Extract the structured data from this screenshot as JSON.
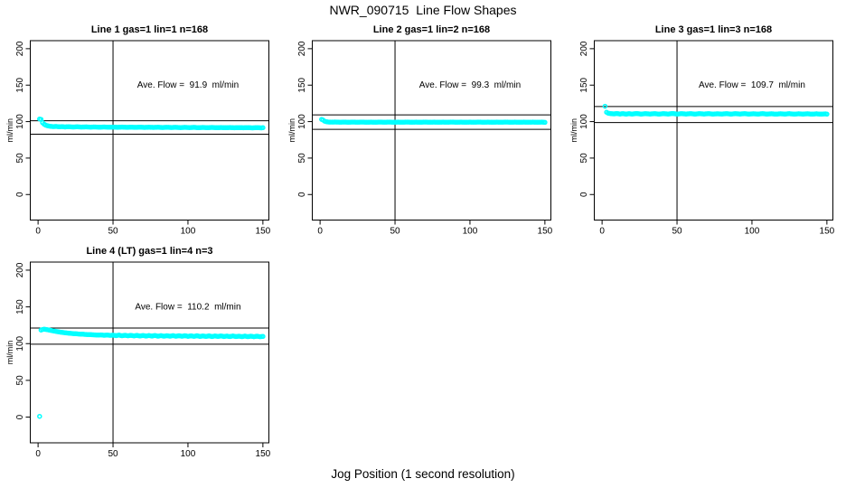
{
  "title": "NWR_090715  Line Flow Shapes",
  "xlabel": "Jog Position (1 second resolution)",
  "colors": {
    "marker": "#00ffff",
    "axis": "#000000",
    "text": "#000000",
    "background": "#ffffff"
  },
  "chart_data": [
    {
      "type": "scatter",
      "title": "Line 1 gas=1 lin=1 n=168",
      "ylabel": "ml/min",
      "annotation": "Ave. Flow =  91.9  ml/min",
      "ave_flow_ml_min": 91.9,
      "n": 168,
      "xticks": [
        0,
        50,
        100,
        150
      ],
      "yticks": [
        0,
        50,
        100,
        150,
        200
      ],
      "xlim": [
        0,
        150
      ],
      "ylim": [
        0,
        200
      ],
      "vline": 50,
      "hlines": [
        101.1,
        82.7
      ],
      "points": [
        [
          1,
          103.5
        ],
        [
          2,
          103
        ],
        [
          3,
          98.5
        ],
        [
          4,
          96.5
        ],
        [
          5,
          95.2
        ],
        [
          6,
          94.5
        ],
        [
          7,
          94
        ],
        [
          8,
          93.6
        ],
        [
          10,
          93.2
        ],
        [
          12,
          93.4
        ],
        [
          14,
          92.9
        ],
        [
          16,
          93.1
        ],
        [
          18,
          92.7
        ],
        [
          20,
          93
        ],
        [
          23,
          92.6
        ],
        [
          26,
          92.9
        ],
        [
          29,
          92.5
        ],
        [
          32,
          92.8
        ],
        [
          35,
          92.4
        ],
        [
          38,
          92.7
        ],
        [
          41,
          92.3
        ],
        [
          44,
          92.6
        ],
        [
          47,
          92.3
        ],
        [
          50,
          92.5
        ],
        [
          53,
          92.2
        ],
        [
          56,
          92.5
        ],
        [
          59,
          92.1
        ],
        [
          62,
          92.4
        ],
        [
          65,
          92.1
        ],
        [
          68,
          92.4
        ],
        [
          71,
          92
        ],
        [
          74,
          92.3
        ],
        [
          77,
          92
        ],
        [
          80,
          92.3
        ],
        [
          83,
          91.9
        ],
        [
          86,
          92.2
        ],
        [
          89,
          91.9
        ],
        [
          92,
          92.2
        ],
        [
          95,
          91.8
        ],
        [
          98,
          92.1
        ],
        [
          101,
          91.8
        ],
        [
          104,
          92.1
        ],
        [
          107,
          91.7
        ],
        [
          110,
          92
        ],
        [
          113,
          91.7
        ],
        [
          116,
          92
        ],
        [
          119,
          91.6
        ],
        [
          122,
          91.9
        ],
        [
          125,
          91.6
        ],
        [
          128,
          91.9
        ],
        [
          131,
          91.5
        ],
        [
          134,
          91.8
        ],
        [
          137,
          91.5
        ],
        [
          140,
          91.8
        ],
        [
          143,
          91.4
        ],
        [
          146,
          91.7
        ],
        [
          149,
          91.4
        ],
        [
          150,
          91.6
        ]
      ]
    },
    {
      "type": "scatter",
      "title": "Line 2 gas=1 lin=2 n=168",
      "ylabel": "ml/min",
      "annotation": "Ave. Flow =  99.3  ml/min",
      "ave_flow_ml_min": 99.3,
      "n": 168,
      "xticks": [
        0,
        50,
        100,
        150
      ],
      "yticks": [
        0,
        50,
        100,
        150,
        200
      ],
      "xlim": [
        0,
        150
      ],
      "ylim": [
        0,
        200
      ],
      "vline": 50,
      "hlines": [
        109.2,
        89.4
      ],
      "points": [
        [
          1,
          103
        ],
        [
          2,
          102.2
        ],
        [
          3,
          100.6
        ],
        [
          4,
          99.9
        ],
        [
          5,
          99.6
        ],
        [
          6,
          99.4
        ],
        [
          8,
          99.3
        ],
        [
          10,
          99.5
        ],
        [
          13,
          99.2
        ],
        [
          16,
          99.4
        ],
        [
          19,
          99.1
        ],
        [
          22,
          99.4
        ],
        [
          25,
          99.2
        ],
        [
          28,
          99.4
        ],
        [
          31,
          99.1
        ],
        [
          34,
          99.3
        ],
        [
          37,
          99.1
        ],
        [
          40,
          99.4
        ],
        [
          43,
          99.2
        ],
        [
          46,
          99.4
        ],
        [
          49,
          99.1
        ],
        [
          52,
          99.3
        ],
        [
          55,
          99.2
        ],
        [
          58,
          99.4
        ],
        [
          61,
          99.1
        ],
        [
          64,
          99.3
        ],
        [
          67,
          99.1
        ],
        [
          70,
          99.4
        ],
        [
          73,
          99.2
        ],
        [
          76,
          99.3
        ],
        [
          79,
          99.1
        ],
        [
          82,
          99.3
        ],
        [
          85,
          99.2
        ],
        [
          88,
          99.4
        ],
        [
          91,
          99.1
        ],
        [
          94,
          99.3
        ],
        [
          97,
          99.1
        ],
        [
          100,
          99.3
        ],
        [
          103,
          99.2
        ],
        [
          106,
          99.4
        ],
        [
          109,
          99.1
        ],
        [
          112,
          99.3
        ],
        [
          115,
          99.1
        ],
        [
          118,
          99.3
        ],
        [
          121,
          99.2
        ],
        [
          124,
          99.4
        ],
        [
          127,
          99.1
        ],
        [
          130,
          99.3
        ],
        [
          133,
          99.1
        ],
        [
          136,
          99.3
        ],
        [
          139,
          99.2
        ],
        [
          142,
          99.3
        ],
        [
          145,
          99.1
        ],
        [
          148,
          99.3
        ],
        [
          150,
          99
        ]
      ]
    },
    {
      "type": "scatter",
      "title": "Line 3 gas=1 lin=3 n=168",
      "ylabel": "ml/min",
      "annotation": "Ave. Flow =  109.7  ml/min",
      "ave_flow_ml_min": 109.7,
      "n": 168,
      "xticks": [
        0,
        50,
        100,
        150
      ],
      "yticks": [
        0,
        50,
        100,
        150,
        200
      ],
      "xlim": [
        0,
        150
      ],
      "ylim": [
        0,
        200
      ],
      "vline": 50,
      "hlines": [
        120.7,
        98.7
      ],
      "points": [
        [
          2,
          121
        ],
        [
          3,
          112.8
        ],
        [
          4,
          111.6
        ],
        [
          5,
          111.2
        ],
        [
          6,
          110.9
        ],
        [
          8,
          110.6
        ],
        [
          10,
          111.1
        ],
        [
          12,
          110.4
        ],
        [
          14,
          111
        ],
        [
          16,
          110.3
        ],
        [
          18,
          110.9
        ],
        [
          20,
          110.4
        ],
        [
          23,
          111.1
        ],
        [
          26,
          110.3
        ],
        [
          29,
          110.9
        ],
        [
          32,
          110.4
        ],
        [
          35,
          111
        ],
        [
          38,
          110.3
        ],
        [
          41,
          110.9
        ],
        [
          44,
          110.4
        ],
        [
          47,
          111.1
        ],
        [
          50,
          110.3
        ],
        [
          53,
          110.9
        ],
        [
          56,
          110.4
        ],
        [
          59,
          111
        ],
        [
          62,
          110.3
        ],
        [
          65,
          110.9
        ],
        [
          68,
          110.4
        ],
        [
          71,
          111
        ],
        [
          74,
          110.3
        ],
        [
          77,
          110.8
        ],
        [
          80,
          110.4
        ],
        [
          83,
          111
        ],
        [
          86,
          110.3
        ],
        [
          89,
          110.9
        ],
        [
          92,
          110.4
        ],
        [
          95,
          111
        ],
        [
          98,
          110.3
        ],
        [
          101,
          110.8
        ],
        [
          104,
          110.3
        ],
        [
          107,
          110.9
        ],
        [
          110,
          110.3
        ],
        [
          113,
          110.8
        ],
        [
          116,
          110.2
        ],
        [
          119,
          110.8
        ],
        [
          122,
          110.3
        ],
        [
          125,
          110.9
        ],
        [
          128,
          110.2
        ],
        [
          131,
          110.7
        ],
        [
          134,
          110.3
        ],
        [
          137,
          110.8
        ],
        [
          140,
          110.2
        ],
        [
          143,
          110.7
        ],
        [
          146,
          110.2
        ],
        [
          149,
          110.6
        ],
        [
          150,
          110.3
        ]
      ]
    },
    {
      "type": "scatter",
      "title": "Line 4 (LT) gas=1 lin=4 n=3",
      "ylabel": "ml/min",
      "annotation": "Ave. Flow =  110.2  ml/min",
      "ave_flow_ml_min": 110.2,
      "n": 3,
      "xticks": [
        0,
        50,
        100,
        150
      ],
      "yticks": [
        0,
        50,
        100,
        150,
        200
      ],
      "xlim": [
        0,
        150
      ],
      "ylim": [
        0,
        200
      ],
      "vline": 50,
      "hlines": [
        121.2,
        99.2
      ],
      "points": [
        [
          1,
          1
        ],
        [
          2,
          118.5
        ],
        [
          3,
          119.2
        ],
        [
          4,
          119.6
        ],
        [
          5,
          119.4
        ],
        [
          6,
          119
        ],
        [
          7,
          118.6
        ],
        [
          8,
          118.2
        ],
        [
          9,
          117.8
        ],
        [
          10,
          117.4
        ],
        [
          12,
          116.6
        ],
        [
          14,
          115.9
        ],
        [
          16,
          115.3
        ],
        [
          18,
          114.8
        ],
        [
          20,
          114.3
        ],
        [
          22,
          113.9
        ],
        [
          24,
          113.6
        ],
        [
          26,
          113.3
        ],
        [
          28,
          113
        ],
        [
          30,
          112.8
        ],
        [
          32,
          112.5
        ],
        [
          34,
          112.3
        ],
        [
          36,
          112.1
        ],
        [
          38,
          111.9
        ],
        [
          40,
          111.7
        ],
        [
          42,
          111.9
        ],
        [
          44,
          111.4
        ],
        [
          46,
          111.7
        ],
        [
          48,
          111.2
        ],
        [
          50,
          111.5
        ],
        [
          52,
          110.9
        ],
        [
          54,
          111.6
        ],
        [
          56,
          110.7
        ],
        [
          58,
          111.4
        ],
        [
          60,
          110.6
        ],
        [
          62,
          111.3
        ],
        [
          64,
          110.5
        ],
        [
          66,
          111.2
        ],
        [
          68,
          110.4
        ],
        [
          70,
          111.1
        ],
        [
          72,
          110.3
        ],
        [
          74,
          111
        ],
        [
          76,
          110.3
        ],
        [
          78,
          111.1
        ],
        [
          80,
          110.2
        ],
        [
          82,
          110.9
        ],
        [
          84,
          110.1
        ],
        [
          86,
          110.8
        ],
        [
          88,
          110.1
        ],
        [
          90,
          110.9
        ],
        [
          92,
          110
        ],
        [
          94,
          110.7
        ],
        [
          96,
          110
        ],
        [
          98,
          110.8
        ],
        [
          100,
          109.9
        ],
        [
          102,
          110.6
        ],
        [
          104,
          109.9
        ],
        [
          106,
          110.7
        ],
        [
          108,
          109.8
        ],
        [
          110,
          110.5
        ],
        [
          112,
          109.8
        ],
        [
          114,
          110.6
        ],
        [
          116,
          109.7
        ],
        [
          118,
          110.4
        ],
        [
          120,
          109.8
        ],
        [
          122,
          110.5
        ],
        [
          124,
          109.7
        ],
        [
          126,
          110.3
        ],
        [
          128,
          109.6
        ],
        [
          130,
          110.4
        ],
        [
          132,
          109.6
        ],
        [
          134,
          110.2
        ],
        [
          136,
          109.5
        ],
        [
          138,
          110.3
        ],
        [
          140,
          109.5
        ],
        [
          142,
          110.1
        ],
        [
          144,
          109.4
        ],
        [
          146,
          110.1
        ],
        [
          148,
          109.4
        ],
        [
          150,
          109.8
        ]
      ]
    }
  ]
}
